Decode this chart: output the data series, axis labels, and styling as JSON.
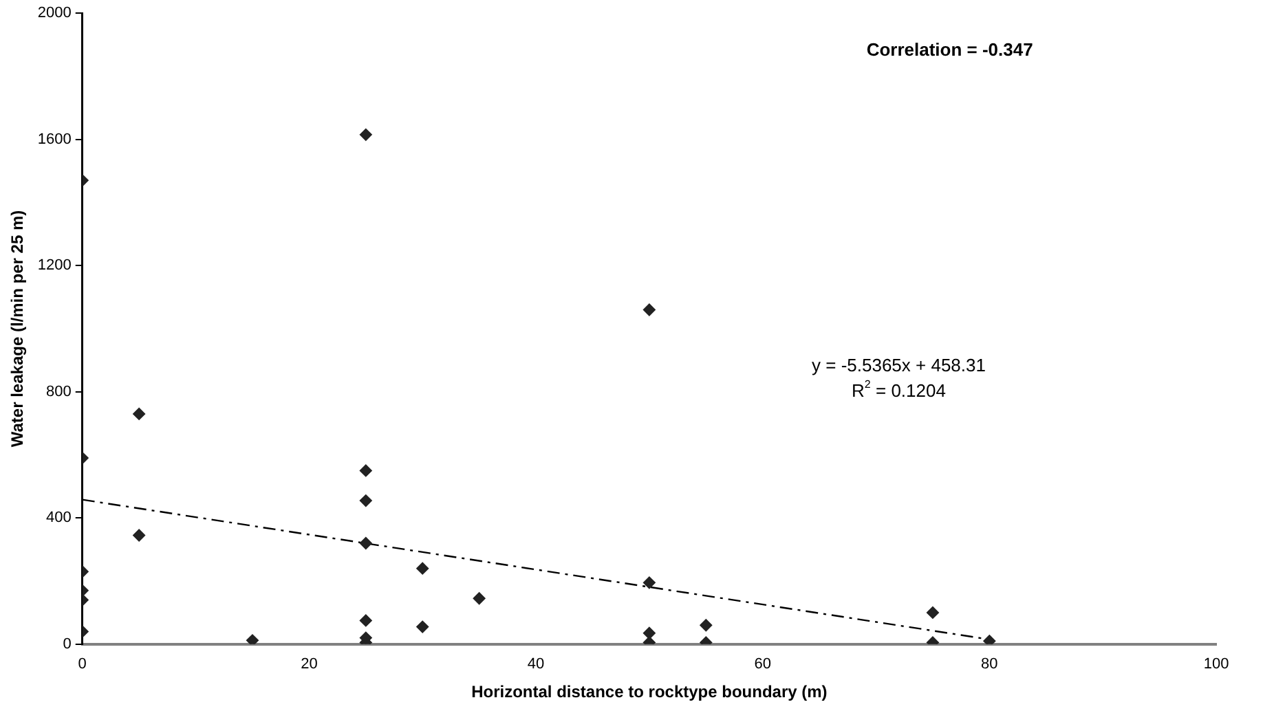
{
  "chart_data": {
    "type": "scatter",
    "xlabel": "Horizontal distance to rocktype boundary (m)",
    "ylabel": "Water leakage (l/min per 25 m)",
    "xlim": [
      0,
      100
    ],
    "xticks": [
      0,
      20,
      40,
      60,
      80,
      100
    ],
    "ylim": [
      0,
      2000
    ],
    "yticks": [
      0,
      400,
      800,
      1200,
      1600,
      2000
    ],
    "grid": false,
    "legend": false,
    "marker": "diamond",
    "series": [
      {
        "color": "#222222",
        "x": [
          0,
          0,
          0,
          0,
          0,
          0,
          5,
          5,
          15,
          25,
          25,
          25,
          25,
          25,
          25,
          25,
          30,
          30,
          35,
          50,
          50,
          50,
          50,
          55,
          55,
          75,
          75,
          80
        ],
        "values": [
          1470,
          590,
          230,
          170,
          140,
          40,
          730,
          345,
          12,
          1615,
          550,
          455,
          320,
          75,
          20,
          5,
          240,
          55,
          145,
          1060,
          195,
          35,
          5,
          60,
          5,
          100,
          5,
          10
        ]
      },
      {
        "type": "line",
        "color": "#000000",
        "line_style": "dashed",
        "marker": "none",
        "x": [
          0,
          80
        ],
        "values": [
          458,
          15
        ]
      }
    ],
    "annotations": [
      "Correlation = -0.347",
      "y = -5.5365x + 458.31",
      "R$^{2}$ = 0.1204"
    ]
  }
}
